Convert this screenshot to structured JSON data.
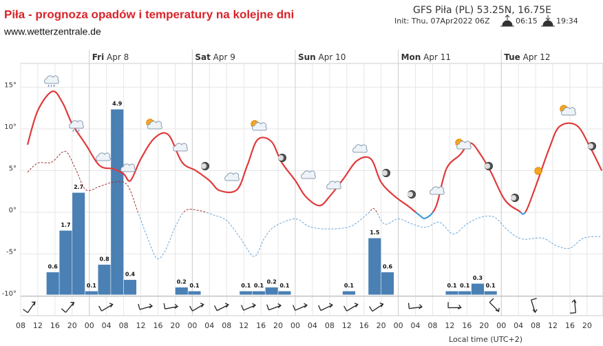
{
  "chart_data": {
    "type": "line",
    "title": "Piła - prognoza opadów i temperatury na kolejne dni",
    "subtitle": "www.wetterzentrale.de",
    "model_info": "GFS Piła (PL) 53.25N, 16.75E",
    "init": "Init: Thu, 07Apr2022 06Z",
    "sunrise": "06:15",
    "sunset": "19:34",
    "x_axis_label": "Local time (UTC+2)",
    "xlim": [
      8,
      143.7
    ],
    "xticks": [
      {
        "value": 8,
        "label": "08"
      },
      {
        "value": 12,
        "label": "12"
      },
      {
        "value": 16,
        "label": "16"
      },
      {
        "value": 20,
        "label": "20"
      },
      {
        "value": 24,
        "label": "00"
      },
      {
        "value": 28,
        "label": "04"
      },
      {
        "value": 32,
        "label": "08"
      },
      {
        "value": 36,
        "label": "12"
      },
      {
        "value": 40,
        "label": "16"
      },
      {
        "value": 44,
        "label": "20"
      },
      {
        "value": 48,
        "label": "00"
      },
      {
        "value": 52,
        "label": "04"
      },
      {
        "value": 56,
        "label": "08"
      },
      {
        "value": 60,
        "label": "12"
      },
      {
        "value": 64,
        "label": "16"
      },
      {
        "value": 68,
        "label": "20"
      },
      {
        "value": 72,
        "label": "00"
      },
      {
        "value": 76,
        "label": "04"
      },
      {
        "value": 80,
        "label": "08"
      },
      {
        "value": 84,
        "label": "12"
      },
      {
        "value": 88,
        "label": "16"
      },
      {
        "value": 92,
        "label": "20"
      },
      {
        "value": 96,
        "label": "00"
      },
      {
        "value": 100,
        "label": "04"
      },
      {
        "value": 104,
        "label": "08"
      },
      {
        "value": 108,
        "label": "12"
      },
      {
        "value": 112,
        "label": "16"
      },
      {
        "value": 116,
        "label": "20"
      },
      {
        "value": 120,
        "label": "00"
      },
      {
        "value": 124,
        "label": "04"
      },
      {
        "value": 128,
        "label": "08"
      },
      {
        "value": 132,
        "label": "12"
      },
      {
        "value": 136,
        "label": "16"
      },
      {
        "value": 140,
        "label": "20"
      }
    ],
    "day_labels": [
      {
        "value": 24,
        "day": "Fri",
        "date": "Apr 8"
      },
      {
        "value": 48,
        "day": "Sat",
        "date": "Apr 9"
      },
      {
        "value": 72,
        "day": "Sun",
        "date": "Apr 10"
      },
      {
        "value": 96,
        "day": "Mon",
        "date": "Apr 11"
      },
      {
        "value": 120,
        "day": "Tue",
        "date": "Apr 12"
      }
    ],
    "ylim": [
      -12.4,
      17.85
    ],
    "yticks": [
      {
        "value": -10,
        "label": "-10°"
      },
      {
        "value": -5,
        "label": "-5°"
      },
      {
        "value": 0,
        "label": "0°"
      },
      {
        "value": 5,
        "label": "5°"
      },
      {
        "value": 10,
        "label": "10°"
      },
      {
        "value": 15,
        "label": "15°"
      }
    ],
    "y2lim": [
      -0.55,
      6.11
    ],
    "grid": true,
    "series": [
      {
        "color": "#e0393a",
        "negative_color": "#3f9ad6",
        "dashed": false,
        "x": [
          9.6,
          12,
          15.4,
          17.8,
          20,
          23.2,
          26.4,
          29.6,
          32,
          33.6,
          36,
          39.2,
          42.4,
          45.6,
          48.8,
          52,
          54.4,
          58.4,
          60.8,
          63.2,
          66.4,
          68.8,
          72,
          74.4,
          77.6,
          80,
          83.2,
          86.4,
          89.6,
          92,
          95.2,
          98.4,
          100.8,
          102.4,
          104.8,
          107.2,
          110.4,
          112.8,
          115.2,
          117.6,
          120.8,
          124,
          125.6,
          128,
          131.2,
          133.6,
          137.6,
          140.8,
          143.4
        ],
        "values": [
          8.1,
          12.2,
          14.5,
          13.1,
          10.6,
          8.1,
          5.6,
          5.2,
          4.6,
          3.8,
          6.4,
          8.9,
          9.3,
          6.0,
          5.0,
          3.8,
          2.6,
          2.7,
          5.6,
          8.7,
          8.5,
          6.0,
          3.8,
          1.9,
          0.8,
          1.9,
          4.0,
          6.2,
          6.4,
          3.6,
          1.9,
          0.7,
          -0.3,
          -0.7,
          0.7,
          5.2,
          6.9,
          8.3,
          6.9,
          4.8,
          1.5,
          0.2,
          0,
          3.1,
          7.7,
          10.3,
          10.4,
          7.7,
          5.0
        ]
      },
      {
        "color": "#a03030",
        "negative_color": "#6aa5d8",
        "dashed": true,
        "x": [
          9.6,
          12,
          15.2,
          18.4,
          20.8,
          23.2,
          26.4,
          29.6,
          32.8,
          35.2,
          37.6,
          39.7,
          41.6,
          44,
          46.4,
          49.6,
          52.8,
          56,
          59.2,
          62.4,
          64.8,
          67.2,
          72,
          75.2,
          79.2,
          84.8,
          88.8,
          90.4,
          92.8,
          96,
          99.2,
          102.4,
          105.6,
          108.8,
          112,
          115.2,
          118.4,
          121.6,
          124.8,
          129.6,
          132.8,
          136,
          139.2,
          143.4
        ],
        "values": [
          4.8,
          5.9,
          6.0,
          7.3,
          5.2,
          2.7,
          3.1,
          3.6,
          3.3,
          0.2,
          -3.1,
          -5.5,
          -4.7,
          -1.8,
          0.2,
          0.2,
          -0.3,
          -1.0,
          -3.1,
          -5.3,
          -3.1,
          -1.7,
          -0.8,
          -1.7,
          -2.0,
          -1.7,
          -0.2,
          0.4,
          -1.4,
          -0.8,
          -1.4,
          -1.8,
          -1.2,
          -2.6,
          -1.4,
          -0.6,
          -0.6,
          -2.2,
          -3.2,
          -3.1,
          -4.0,
          -4.3,
          -3.1,
          -2.9
        ]
      }
    ],
    "precip": {
      "type": "bar",
      "axis": "y2",
      "color": "#4a80b4",
      "x": [
        15.5,
        18.5,
        21.5,
        24.5,
        27.5,
        30.5,
        33.5,
        45.5,
        48.5,
        60.5,
        63.5,
        66.5,
        69.5,
        84.5,
        90.5,
        93.5,
        108.5,
        111.5,
        114.5,
        117.5
      ],
      "values": [
        0.6,
        1.7,
        2.7,
        0.1,
        0.8,
        4.9,
        0.4,
        0.2,
        0.1,
        0.1,
        0.1,
        0.2,
        0.1,
        0.1,
        1.5,
        0.6,
        0.1,
        0.1,
        0.3,
        0.1
      ]
    }
  }
}
